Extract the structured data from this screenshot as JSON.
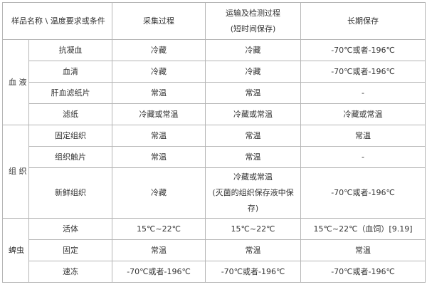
{
  "header": {
    "sample_condition": "样品名称 \\ 温度要求或条件",
    "collection": "采集过程",
    "transport_line1": "运输及检测过程",
    "transport_line2": "(短时间保存)",
    "long_term": "长期保存"
  },
  "groups": [
    {
      "name": "血 液",
      "rows": [
        {
          "sample": "抗凝血",
          "collection": "冷藏",
          "transport": "冷藏",
          "long_term": "-70℃或者-196℃"
        },
        {
          "sample": "血清",
          "collection": "冷藏",
          "transport": "冷藏",
          "long_term": "-70℃或者-196℃"
        },
        {
          "sample": "肝血滤纸片",
          "collection": "常温",
          "transport": "常温",
          "long_term": "-"
        },
        {
          "sample": "滤纸",
          "collection": "冷藏或常温",
          "transport": "冷藏或常温",
          "long_term": "冷藏或常温"
        }
      ]
    },
    {
      "name": "组 织",
      "rows": [
        {
          "sample": "固定组织",
          "collection": "常温",
          "transport": "常温",
          "long_term": "常温"
        },
        {
          "sample": "组织触片",
          "collection": "常温",
          "transport": "常温",
          "long_term": "-"
        },
        {
          "sample": "新鲜组织",
          "collection": "冷藏",
          "transport_line1": "冷藏或常温",
          "transport_line2": "(灭菌的组织保存液中保",
          "transport_line3": "存)",
          "long_term": "-70℃或者-196℃"
        }
      ]
    },
    {
      "name": "蜱虫",
      "rows": [
        {
          "sample": "活体",
          "collection": "15℃~22℃",
          "transport": "15℃~22℃",
          "long_term": "15℃~22℃（血饲）[9.19]"
        },
        {
          "sample": "固定",
          "collection": "常温",
          "transport": "常温",
          "long_term": "常温"
        },
        {
          "sample": "速冻",
          "collection": "-70℃或者-196℃",
          "transport": "-70℃或者-196℃",
          "long_term": "-70℃或者-196℃"
        }
      ]
    }
  ]
}
